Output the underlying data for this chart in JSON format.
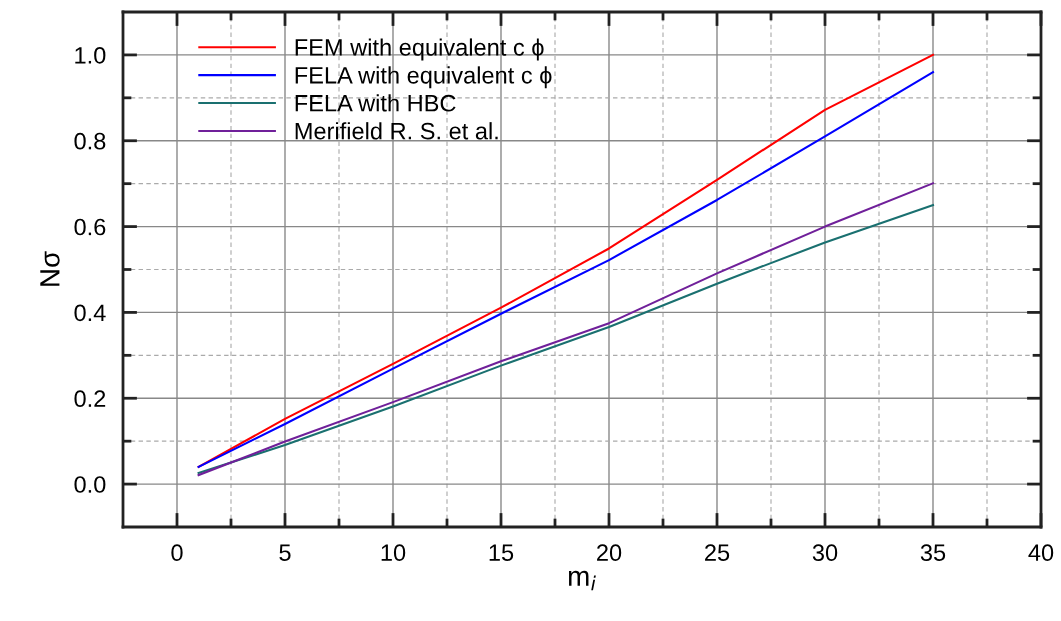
{
  "chart_data": {
    "type": "line",
    "xlabel": "m$_{i}$",
    "ylabel": "Nσ",
    "x": [
      1,
      5,
      10,
      15,
      20,
      25,
      30,
      35
    ],
    "series": [
      {
        "name": "FEM with equivalent c ϕ",
        "color": "#ff0000",
        "values": [
          0.04,
          0.152,
          0.28,
          0.411,
          0.549,
          0.709,
          0.872,
          1.0
        ]
      },
      {
        "name": "FELA with equivalent c ϕ",
        "color": "#0000ff",
        "values": [
          0.04,
          0.14,
          0.269,
          0.397,
          0.522,
          0.662,
          0.81,
          0.96
        ]
      },
      {
        "name": "FELA with HBC",
        "color": "#1a7070",
        "values": [
          0.026,
          0.091,
          0.181,
          0.276,
          0.366,
          0.467,
          0.563,
          0.65
        ]
      },
      {
        "name": "Merifield R. S. et al.",
        "color": "#70209a",
        "values": [
          0.021,
          0.099,
          0.191,
          0.286,
          0.375,
          0.491,
          0.6,
          0.701
        ]
      }
    ],
    "xlim": [
      -2.5,
      40
    ],
    "ylim": [
      -0.1,
      1.1
    ],
    "xticks": [
      0,
      {
        "value": 2.5,
        "label": null
      },
      5,
      {
        "value": 7.5,
        "label": null
      },
      10,
      {
        "value": 12.5,
        "label": null
      },
      15,
      {
        "value": 17.5,
        "label": null
      },
      20,
      {
        "value": 22.5,
        "label": null
      },
      25,
      {
        "value": 27.5,
        "label": null
      },
      30,
      {
        "value": 32.5,
        "label": null
      },
      35,
      {
        "value": 37.5,
        "label": null
      },
      40
    ],
    "yticks": [
      {
        "value": 0,
        "label": "0.0"
      },
      {
        "value": 0.1,
        "label": null
      },
      0.2,
      {
        "value": 0.3,
        "label": null
      },
      0.4,
      {
        "value": 0.5,
        "label": null
      },
      0.6,
      {
        "value": 0.7,
        "label": null
      },
      0.8,
      {
        "value": 0.9,
        "label": null
      },
      {
        "value": 1.0,
        "label": "1.0"
      }
    ],
    "grid": true,
    "legend": "top left",
    "marker": "none",
    "line_style": "solid"
  }
}
